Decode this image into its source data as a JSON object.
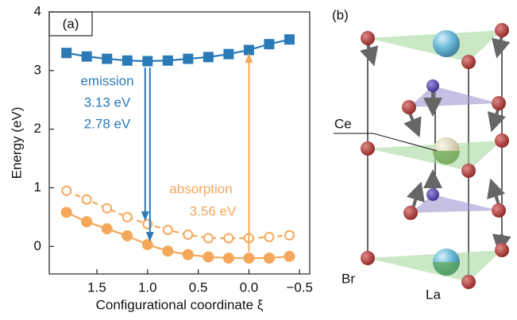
{
  "chart_data": {
    "type": "line",
    "panel_label": "(a)",
    "y_label": "Energy (eV)",
    "x_label": "Configurational coordinate ξ",
    "x": [
      1.8,
      1.6,
      1.4,
      1.2,
      1.0,
      0.8,
      0.6,
      0.4,
      0.2,
      0.0,
      -0.2,
      -0.4
    ],
    "series": [
      {
        "color": "#2a7ab8",
        "marker": "square",
        "dashed": false,
        "values": [
          3.3,
          3.24,
          3.2,
          3.17,
          3.16,
          3.17,
          3.2,
          3.23,
          3.28,
          3.35,
          3.45,
          3.53
        ]
      },
      {
        "color": "#f5a85a",
        "marker": "circle-open",
        "dashed": true,
        "values": [
          0.95,
          0.8,
          0.65,
          0.5,
          0.38,
          0.28,
          0.2,
          0.14,
          0.14,
          0.14,
          0.16,
          0.19
        ]
      },
      {
        "color": "#f5a85a",
        "marker": "circle",
        "dashed": false,
        "values": [
          0.58,
          0.42,
          0.3,
          0.18,
          0.03,
          -0.08,
          -0.14,
          -0.18,
          -0.2,
          -0.2,
          -0.2,
          -0.17
        ]
      }
    ],
    "annotations": {
      "emission": "emission",
      "emission_1": "3.13 eV",
      "emission_2": "2.78 eV",
      "absorption": "absorption",
      "absorption_1": "3.56 eV"
    },
    "xlim": [
      1.97,
      -0.6
    ],
    "ylim": [
      -0.47,
      4
    ],
    "xticks": [
      1.5,
      {
        "value": 1.0,
        "label": "1.0"
      },
      0.5,
      {
        "value": 0.0,
        "label": "0.0"
      },
      {
        "value": -0.5,
        "label": "−0.5"
      }
    ],
    "yticks": [
      0,
      1,
      2,
      3,
      4
    ]
  },
  "structure": {
    "panel_label": "(b)",
    "labels": {
      "ce": "Ce",
      "br": "Br",
      "la": "La"
    }
  }
}
